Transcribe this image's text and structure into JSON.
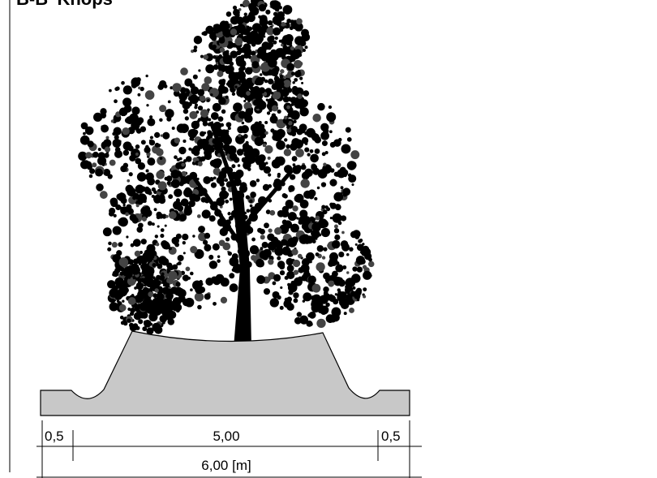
{
  "title": "B-B' Knops",
  "dimensions": {
    "left": "0,5",
    "middle": "5,00",
    "right": "0,5",
    "total": "6,00 [m]"
  }
}
